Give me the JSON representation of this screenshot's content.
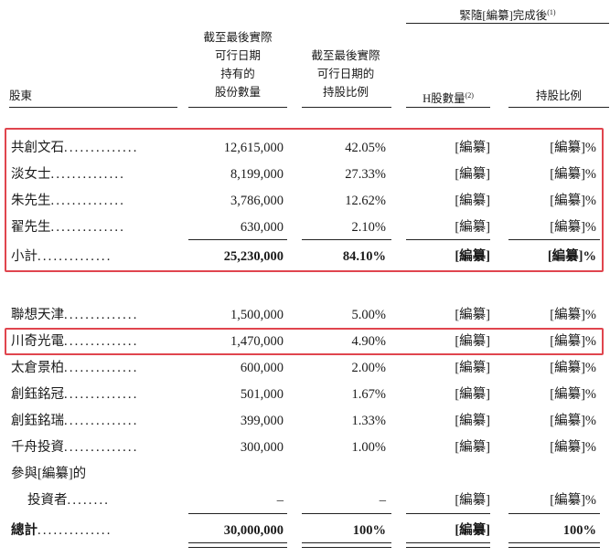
{
  "header": {
    "group_title": "緊隨[編纂]完成後",
    "group_title_note": "(1)",
    "col_shareholder": "股東",
    "col_shares_lines": [
      "截至最後實際",
      "可行日期",
      "持有的",
      "股份數量"
    ],
    "col_pct_lines": [
      "截至最後實際",
      "可行日期的",
      "持股比例"
    ],
    "col_h_shares": "H股數量",
    "col_h_shares_note": "(2)",
    "col_post_pct": "持股比例"
  },
  "group1": [
    {
      "name": "共創文石",
      "shares": "12,615,000",
      "pct": "42.05%",
      "h_shares": "[編纂]",
      "post_pct": "[編纂]%"
    },
    {
      "name": "淡女士",
      "shares": "8,199,000",
      "pct": "27.33%",
      "h_shares": "[編纂]",
      "post_pct": "[編纂]%"
    },
    {
      "name": "朱先生",
      "shares": "3,786,000",
      "pct": "12.62%",
      "h_shares": "[編纂]",
      "post_pct": "[編纂]%"
    },
    {
      "name": "翟先生",
      "shares": "630,000",
      "pct": "2.10%",
      "h_shares": "[編纂]",
      "post_pct": "[編纂]%"
    }
  ],
  "subtotal": {
    "name": "小計",
    "shares": "25,230,000",
    "pct": "84.10%",
    "h_shares": "[編纂]",
    "post_pct": "[編纂]%"
  },
  "group2": [
    {
      "name": "聯想天津",
      "shares": "1,500,000",
      "pct": "5.00%",
      "h_shares": "[編纂]",
      "post_pct": "[編纂]%"
    },
    {
      "name": "川奇光電",
      "shares": "1,470,000",
      "pct": "4.90%",
      "h_shares": "[編纂]",
      "post_pct": "[編纂]%"
    },
    {
      "name": "太倉景柏",
      "shares": "600,000",
      "pct": "2.00%",
      "h_shares": "[編纂]",
      "post_pct": "[編纂]%"
    },
    {
      "name": "創鈺銘冠",
      "shares": "501,000",
      "pct": "1.67%",
      "h_shares": "[編纂]",
      "post_pct": "[編纂]%"
    },
    {
      "name": "創鈺銘瑞",
      "shares": "399,000",
      "pct": "1.33%",
      "h_shares": "[編纂]",
      "post_pct": "[編纂]%"
    },
    {
      "name": "千舟投資",
      "shares": "300,000",
      "pct": "1.00%",
      "h_shares": "[編纂]",
      "post_pct": "[編纂]%"
    }
  ],
  "investors": {
    "name_line1": "參與[編纂]的",
    "name_line2": "投資者",
    "shares": "–",
    "pct": "–",
    "h_shares": "[編纂]",
    "post_pct": "[編纂]%"
  },
  "total": {
    "name": "總計",
    "shares": "30,000,000",
    "pct": "100%",
    "h_shares": "[編纂]",
    "post_pct": "100%"
  },
  "dot_leader": "..............",
  "dot_leader_short": "........",
  "colors": {
    "highlight_box": "#e0454e",
    "text": "#1a1a1a"
  }
}
